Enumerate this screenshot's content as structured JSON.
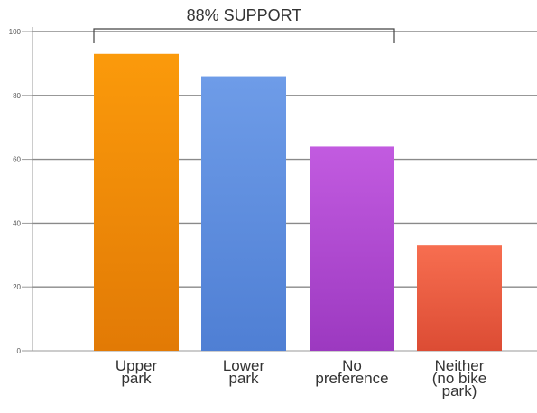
{
  "chart_data": {
    "type": "bar",
    "categories": [
      "Upper park",
      "Lower park",
      "No preference",
      "Neither (no bike park)"
    ],
    "category_lines": [
      [
        "Upper",
        "park"
      ],
      [
        "Lower",
        "park"
      ],
      [
        "No",
        "preference"
      ],
      [
        "Neither",
        "(no bike",
        "park)"
      ]
    ],
    "values": [
      93,
      86,
      64,
      33
    ],
    "ylim": [
      0,
      100
    ],
    "yticks": [
      0,
      20,
      40,
      60,
      80,
      100
    ],
    "ytick_labels": [
      "0",
      "20",
      "40",
      "60",
      "80",
      "100"
    ],
    "grid": true,
    "annotation": {
      "text": "88% SUPPORT",
      "spans_categories": [
        0,
        2
      ]
    },
    "bar_colors": [
      {
        "top": "#fb9a0b",
        "bottom": "#e27a05"
      },
      {
        "top": "#6e9ce8",
        "bottom": "#4f7fd4"
      },
      {
        "top": "#c25be0",
        "bottom": "#9c39c0"
      },
      {
        "top": "#f76e50",
        "bottom": "#dc4c34"
      }
    ],
    "axis_color": "#9a9a9a",
    "grid_color": "#8a8a8a"
  }
}
